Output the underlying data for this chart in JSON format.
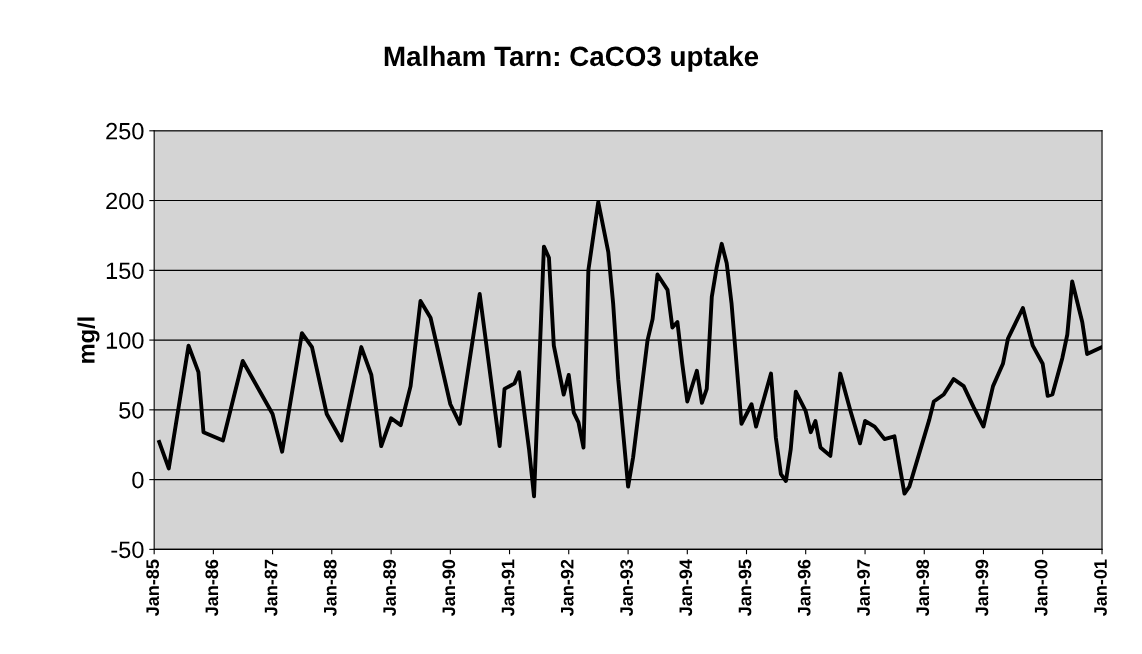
{
  "chart_data": {
    "type": "line",
    "title": "Malham Tarn: CaCO3 uptake",
    "ylabel": "mg/l",
    "x": [
      "1985-02",
      "1985-04",
      "1985-08",
      "1985-10",
      "1985-11",
      "1986-03",
      "1986-07",
      "1987-01",
      "1987-03",
      "1987-07",
      "1987-09",
      "1987-12",
      "1988-03",
      "1988-07",
      "1988-09",
      "1988-11",
      "1989-01",
      "1989-03",
      "1989-05",
      "1989-07",
      "1989-09",
      "1990-01",
      "1990-03",
      "1990-07",
      "1990-11",
      "1990-12",
      "1991-02",
      "1991-03",
      "1991-05",
      "1991-06",
      "1991-08",
      "1991-09",
      "1991-10",
      "1991-12",
      "1992-01",
      "1992-02",
      "1992-03",
      "1992-04",
      "1992-05",
      "1992-07",
      "1992-09",
      "1992-10",
      "1992-11",
      "1993-01",
      "1993-02",
      "1993-05",
      "1993-06",
      "1993-07",
      "1993-09",
      "1993-10",
      "1993-11",
      "1993-12",
      "1994-01",
      "1994-03",
      "1994-04",
      "1994-05",
      "1994-06",
      "1994-07",
      "1994-08",
      "1994-09",
      "1994-10",
      "1994-12",
      "1995-02",
      "1995-03",
      "1995-06",
      "1995-07",
      "1995-08",
      "1995-09",
      "1995-10",
      "1995-11",
      "1996-01",
      "1996-02",
      "1996-03",
      "1996-04",
      "1996-06",
      "1996-08",
      "1996-10",
      "1996-12",
      "1997-01",
      "1997-03",
      "1997-05",
      "1997-07",
      "1997-09",
      "1997-10",
      "1998-02",
      "1998-03",
      "1998-05",
      "1998-07",
      "1998-09",
      "1998-11",
      "1999-01",
      "1999-03",
      "1999-05",
      "1999-06",
      "1999-09",
      "1999-11",
      "2000-01",
      "2000-02",
      "2000-03",
      "2000-05",
      "2000-06",
      "2000-07",
      "2000-09",
      "2000-10",
      "2001-01"
    ],
    "series": [
      {
        "color": "#000000",
        "values": [
          27,
          8,
          96,
          77,
          34,
          28,
          85,
          47,
          20,
          105,
          95,
          47,
          28,
          95,
          75,
          24,
          44,
          39,
          67,
          128,
          116,
          54,
          40,
          133,
          24,
          65,
          69,
          77,
          22,
          -12,
          167,
          159,
          96,
          61,
          75,
          48,
          41,
          23,
          150,
          199,
          163,
          126,
          72,
          -5,
          16,
          100,
          115,
          147,
          136,
          109,
          113,
          83,
          56,
          78,
          55,
          65,
          131,
          152,
          169,
          155,
          126,
          40,
          54,
          38,
          76,
          30,
          4,
          -1,
          22,
          63,
          49,
          34,
          42,
          23,
          17,
          76,
          50,
          26,
          42,
          38,
          29,
          31,
          -10,
          -5,
          43,
          56,
          61,
          72,
          67,
          52,
          38,
          67,
          83,
          101,
          123,
          96,
          83,
          60,
          61,
          87,
          104,
          142,
          113,
          90,
          95
        ]
      }
    ],
    "xlim": [
      "1985-01",
      "2001-01"
    ],
    "xticks": [
      {
        "value": "1985-01",
        "label": "Jan-85"
      },
      {
        "value": "1986-01",
        "label": "Jan-86"
      },
      {
        "value": "1987-01",
        "label": "Jan-87"
      },
      {
        "value": "1988-01",
        "label": "Jan-88"
      },
      {
        "value": "1989-01",
        "label": "Jan-89"
      },
      {
        "value": "1990-01",
        "label": "Jan-90"
      },
      {
        "value": "1991-01",
        "label": "Jan-91"
      },
      {
        "value": "1992-01",
        "label": "Jan-92"
      },
      {
        "value": "1993-01",
        "label": "Jan-93"
      },
      {
        "value": "1994-01",
        "label": "Jan-94"
      },
      {
        "value": "1995-01",
        "label": "Jan-95"
      },
      {
        "value": "1996-01",
        "label": "Jan-96"
      },
      {
        "value": "1997-01",
        "label": "Jan-97"
      },
      {
        "value": "1998-01",
        "label": "Jan-98"
      },
      {
        "value": "1999-01",
        "label": "Jan-99"
      },
      {
        "value": "2000-01",
        "label": "Jan-00"
      },
      {
        "value": "2001-01",
        "label": "Jan-01"
      }
    ],
    "ylim": [
      -50,
      250
    ],
    "yticks": [
      -50,
      0,
      50,
      100,
      150,
      200,
      250
    ],
    "grid": "y",
    "line_style": "solid",
    "marker": "none"
  }
}
